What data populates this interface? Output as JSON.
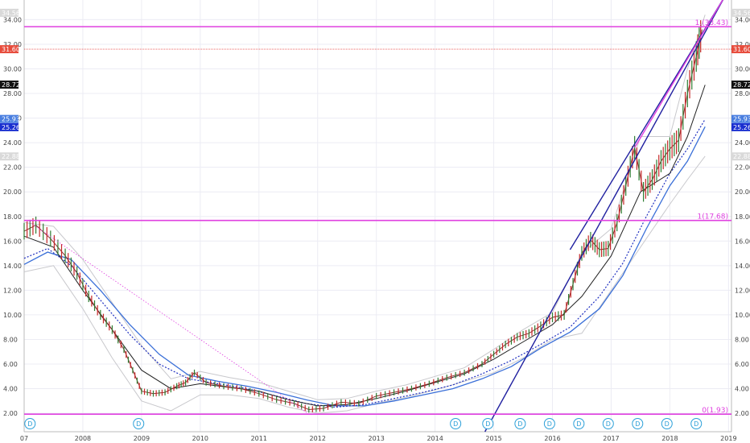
{
  "chart_data": {
    "type": "line",
    "subtype": "candlestick-with-overlays",
    "x_ticks": [
      "07",
      "2008",
      "2009",
      "2010",
      "2011",
      "2012",
      "2013",
      "2014",
      "2015",
      "2016",
      "2017",
      "2018",
      "2019"
    ],
    "y_ticks": [
      "2.00",
      "4.00",
      "6.00",
      "8.00",
      "10.00",
      "12.00",
      "14.00",
      "16.00",
      "18.00",
      "20.00",
      "22.00",
      "24.00",
      "26.00",
      "28.00",
      "30.00",
      "32.00",
      "34.00"
    ],
    "ylim": [
      0.5,
      35.6
    ],
    "xlim": [
      2007.0,
      2019.05
    ],
    "grid": true,
    "price": {
      "x": [
        2007.0,
        2007.2,
        2007.45,
        2007.7,
        2007.9,
        2008.1,
        2008.3,
        2008.5,
        2008.7,
        2008.85,
        2009.0,
        2009.2,
        2009.4,
        2009.6,
        2009.75,
        2009.9,
        2010.1,
        2010.4,
        2010.7,
        2011.0,
        2011.3,
        2011.6,
        2011.85,
        2012.1,
        2012.4,
        2012.7,
        2013.0,
        2013.3,
        2013.6,
        2013.9,
        2014.2,
        2014.5,
        2014.8,
        2015.0,
        2015.2,
        2015.4,
        2015.6,
        2015.8,
        2016.0,
        2016.2,
        2016.35,
        2016.5,
        2016.65,
        2016.8,
        2016.95,
        2017.1,
        2017.25,
        2017.4,
        2017.55,
        2017.7,
        2017.85,
        2018.0,
        2018.15,
        2018.3,
        2018.45,
        2018.55
      ],
      "y": [
        16.8,
        17.3,
        16.2,
        14.8,
        13.4,
        11.5,
        10.0,
        8.8,
        7.2,
        5.5,
        3.8,
        3.6,
        3.7,
        4.2,
        4.5,
        5.3,
        4.5,
        4.2,
        4.0,
        3.6,
        3.1,
        2.8,
        2.3,
        2.4,
        2.9,
        2.8,
        3.4,
        3.7,
        4.0,
        4.4,
        4.9,
        5.3,
        6.0,
        6.8,
        7.6,
        8.2,
        8.5,
        9.1,
        9.8,
        10.0,
        12.5,
        15.0,
        16.1,
        15.3,
        15.4,
        17.5,
        20.5,
        23.6,
        20.0,
        21.0,
        22.5,
        23.5,
        24.2,
        28.0,
        31.0,
        33.2
      ]
    },
    "ma_black": {
      "x": [
        2007.0,
        2007.5,
        2008.0,
        2008.5,
        2009.0,
        2009.5,
        2010.0,
        2010.5,
        2011.0,
        2011.5,
        2012.0,
        2012.5,
        2013.0,
        2013.5,
        2014.0,
        2014.5,
        2015.0,
        2015.5,
        2016.0,
        2016.5,
        2017.0,
        2017.5,
        2018.0,
        2018.3,
        2018.6
      ],
      "y": [
        16.4,
        15.5,
        12.0,
        8.8,
        5.5,
        4.0,
        4.4,
        4.1,
        3.8,
        3.1,
        2.6,
        2.7,
        3.2,
        3.8,
        4.5,
        5.2,
        6.4,
        7.8,
        9.2,
        11.5,
        14.8,
        20.0,
        21.5,
        24.5,
        28.7
      ]
    },
    "ma_blue": {
      "x": [
        2007.0,
        2007.4,
        2007.8,
        2008.3,
        2008.8,
        2009.3,
        2009.8,
        2010.3,
        2010.8,
        2011.3,
        2011.8,
        2012.3,
        2012.8,
        2013.3,
        2013.8,
        2014.3,
        2014.8,
        2015.3,
        2015.8,
        2016.3,
        2016.8,
        2017.2,
        2017.6,
        2018.0,
        2018.3,
        2018.6
      ],
      "y": [
        14.1,
        15.1,
        14.5,
        12.0,
        9.2,
        6.8,
        5.1,
        4.6,
        4.2,
        3.7,
        3.1,
        2.6,
        2.6,
        3.0,
        3.5,
        4.0,
        4.8,
        5.8,
        7.3,
        8.6,
        10.5,
        13.2,
        17.0,
        20.5,
        22.5,
        25.3
      ]
    },
    "ma_dotted": {
      "x": [
        2007.0,
        2007.4,
        2007.8,
        2008.3,
        2008.8,
        2009.3,
        2009.8,
        2010.3,
        2010.8,
        2011.3,
        2011.8,
        2012.3,
        2012.8,
        2013.3,
        2013.8,
        2014.3,
        2014.8,
        2015.3,
        2015.8,
        2016.3,
        2016.8,
        2017.2,
        2017.6,
        2018.0,
        2018.3,
        2018.6
      ],
      "y": [
        14.6,
        15.4,
        14.0,
        11.2,
        8.4,
        6.0,
        4.8,
        4.4,
        4.0,
        3.4,
        2.8,
        2.5,
        2.7,
        3.2,
        3.7,
        4.3,
        5.2,
        6.3,
        7.6,
        9.0,
        11.5,
        14.2,
        18.0,
        21.5,
        23.5,
        25.9
      ]
    },
    "band_upper": {
      "x": [
        2007.0,
        2007.5,
        2008.0,
        2008.5,
        2009.0,
        2009.5,
        2010.0,
        2010.5,
        2011.0,
        2011.5,
        2012.0,
        2012.5,
        2013.0,
        2013.5,
        2014.0,
        2014.5,
        2015.0,
        2015.5,
        2016.0,
        2016.5,
        2017.0,
        2017.5,
        2018.0,
        2018.3,
        2018.6
      ],
      "y": [
        17.5,
        17.2,
        14.5,
        11.0,
        7.5,
        4.8,
        5.4,
        4.9,
        4.5,
        3.8,
        3.1,
        3.2,
        3.8,
        4.3,
        5.0,
        5.7,
        7.2,
        8.8,
        10.2,
        15.0,
        17.0,
        24.5,
        24.5,
        30.0,
        34.4
      ]
    },
    "band_lower": {
      "x": [
        2007.0,
        2007.5,
        2008.0,
        2008.5,
        2009.0,
        2009.5,
        2010.0,
        2010.5,
        2011.0,
        2011.5,
        2012.0,
        2012.5,
        2013.0,
        2013.5,
        2014.0,
        2014.5,
        2015.0,
        2015.5,
        2016.0,
        2016.5,
        2017.0,
        2017.5,
        2018.0,
        2018.3,
        2018.6
      ],
      "y": [
        13.5,
        14.0,
        10.5,
        6.5,
        3.0,
        2.2,
        3.5,
        3.5,
        3.2,
        2.5,
        2.0,
        2.2,
        2.8,
        3.3,
        3.9,
        4.6,
        5.3,
        6.5,
        8.0,
        8.5,
        12.0,
        15.5,
        19.0,
        21.0,
        22.9
      ]
    },
    "trendlines": [
      {
        "style": "solid",
        "color": "#2020a0",
        "x": [
          2014.85,
          2018.95
        ],
        "y": [
          0.5,
          36.0
        ]
      },
      {
        "style": "solid",
        "color": "#2020a0",
        "x": [
          2016.3,
          2018.95
        ],
        "y": [
          15.3,
          36.0
        ]
      },
      {
        "style": "solid",
        "color": "#e040e0",
        "x": [
          2017.4,
          2018.95
        ],
        "y": [
          23.6,
          36.0
        ]
      },
      {
        "style": "dotted",
        "color": "#e040e0",
        "x": [
          2007.05,
          2011.85
        ],
        "y": [
          17.68,
          1.93
        ]
      }
    ],
    "fib_levels": [
      {
        "value": 33.43,
        "label": "1.(33.43)"
      },
      {
        "value": 17.68,
        "label": "1(17.68)"
      },
      {
        "value": 1.93,
        "label": "0(1.93)"
      }
    ],
    "reference_line": {
      "value": 31.6,
      "color": "#e85050"
    },
    "price_badges": [
      {
        "value": 34.56,
        "label": "34.56",
        "color": "#d9d9d9",
        "text_color": "#222222"
      },
      {
        "value": 31.6,
        "label": "31.60",
        "color": "#e74c3c",
        "text_color": "#ffffff"
      },
      {
        "value": 28.72,
        "label": "28.72",
        "color": "#111111",
        "text_color": "#ffffff"
      },
      {
        "value": 25.93,
        "label": "25.93",
        "color": "#4a7fe0",
        "text_color": "#ffffff"
      },
      {
        "value": 25.26,
        "label": "25.26",
        "color": "#1a2fd0",
        "text_color": "#ffffff"
      },
      {
        "value": 22.88,
        "label": "22.88",
        "color": "#d9d9d9",
        "text_color": "#222222"
      }
    ],
    "dividend_marker_label": "D",
    "dividend_markers_x": [
      2007.1,
      2008.95,
      2014.35,
      2014.9,
      2015.45,
      2015.95,
      2016.45,
      2016.95,
      2017.45,
      2017.95,
      2018.45
    ]
  }
}
